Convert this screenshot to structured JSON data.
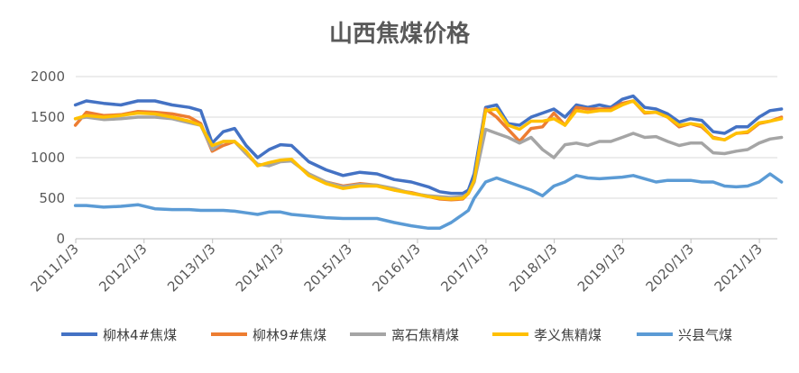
{
  "chart_data": {
    "type": "line",
    "title": "山西焦煤价格",
    "xlabel": "",
    "ylabel": "",
    "ylim": [
      0,
      2000
    ],
    "yticks": [
      "0",
      "500",
      "1000",
      "1500",
      "2000"
    ],
    "xticks": [
      "2011/1/3",
      "2012/1/3",
      "2013/1/3",
      "2014/1/3",
      "2015/1/3",
      "2016/1/3",
      "2017/1/3",
      "2018/1/3",
      "2019/1/3",
      "2020/1/3",
      "2021/1/3"
    ],
    "grid": true,
    "legend_position": "bottom",
    "x": [
      "2011-01",
      "2011-03",
      "2011-06",
      "2011-09",
      "2011-12",
      "2012-03",
      "2012-06",
      "2012-09",
      "2012-11",
      "2013-01",
      "2013-03",
      "2013-05",
      "2013-07",
      "2013-09",
      "2013-11",
      "2014-01",
      "2014-03",
      "2014-06",
      "2014-09",
      "2014-12",
      "2015-03",
      "2015-06",
      "2015-09",
      "2015-12",
      "2016-03",
      "2016-05",
      "2016-07",
      "2016-09",
      "2016-10",
      "2016-11",
      "2017-01",
      "2017-03",
      "2017-05",
      "2017-07",
      "2017-09",
      "2017-11",
      "2018-01",
      "2018-03",
      "2018-05",
      "2018-07",
      "2018-09",
      "2018-11",
      "2019-01",
      "2019-03",
      "2019-05",
      "2019-07",
      "2019-09",
      "2019-11",
      "2020-01",
      "2020-03",
      "2020-05",
      "2020-07",
      "2020-09",
      "2020-11",
      "2021-01",
      "2021-03",
      "2021-05"
    ],
    "series": [
      {
        "name": "柳林4#焦煤",
        "color": "#4472C4",
        "values": [
          1650,
          1700,
          1670,
          1650,
          1700,
          1700,
          1650,
          1620,
          1580,
          1180,
          1320,
          1360,
          1150,
          1000,
          1100,
          1160,
          1150,
          950,
          850,
          780,
          820,
          800,
          730,
          700,
          640,
          580,
          560,
          560,
          600,
          800,
          1620,
          1650,
          1420,
          1400,
          1500,
          1550,
          1600,
          1500,
          1650,
          1620,
          1650,
          1620,
          1720,
          1760,
          1620,
          1600,
          1540,
          1440,
          1480,
          1460,
          1320,
          1300,
          1380,
          1380,
          1500,
          1580,
          1600
        ]
      },
      {
        "name": "柳林9#焦煤",
        "color": "#ED7D31",
        "values": [
          1400,
          1560,
          1520,
          1530,
          1570,
          1560,
          1540,
          1500,
          1420,
          1080,
          1150,
          1200,
          1050,
          910,
          920,
          960,
          960,
          800,
          700,
          650,
          680,
          660,
          600,
          570,
          520,
          490,
          480,
          490,
          560,
          700,
          1600,
          1500,
          1350,
          1200,
          1360,
          1380,
          1550,
          1400,
          1620,
          1600,
          1600,
          1600,
          1670,
          1700,
          1550,
          1560,
          1500,
          1380,
          1420,
          1380,
          1250,
          1220,
          1300,
          1310,
          1420,
          1450,
          1500
        ]
      },
      {
        "name": "离石焦精煤",
        "color": "#A5A5A5",
        "values": [
          1480,
          1500,
          1470,
          1480,
          1500,
          1500,
          1480,
          1430,
          1400,
          1100,
          1200,
          1200,
          1050,
          920,
          900,
          950,
          960,
          800,
          700,
          640,
          670,
          660,
          620,
          560,
          530,
          520,
          510,
          520,
          560,
          700,
          1350,
          1300,
          1250,
          1180,
          1250,
          1100,
          1000,
          1160,
          1180,
          1150,
          1200,
          1200,
          1250,
          1300,
          1250,
          1260,
          1200,
          1150,
          1180,
          1180,
          1060,
          1050,
          1080,
          1100,
          1180,
          1230,
          1250
        ]
      },
      {
        "name": "孝义焦精煤",
        "color": "#FFC000",
        "values": [
          1480,
          1520,
          1500,
          1520,
          1550,
          1540,
          1500,
          1450,
          1400,
          1150,
          1200,
          1200,
          1080,
          900,
          940,
          970,
          980,
          780,
          680,
          620,
          650,
          650,
          600,
          560,
          520,
          500,
          490,
          500,
          560,
          720,
          1580,
          1600,
          1400,
          1350,
          1450,
          1450,
          1480,
          1400,
          1580,
          1560,
          1580,
          1580,
          1650,
          1700,
          1560,
          1560,
          1500,
          1400,
          1420,
          1400,
          1240,
          1220,
          1300,
          1320,
          1430,
          1450,
          1480
        ]
      },
      {
        "name": "兴县气煤",
        "color": "#5B9BD5",
        "values": [
          410,
          410,
          390,
          400,
          420,
          370,
          360,
          360,
          350,
          350,
          350,
          340,
          320,
          300,
          330,
          330,
          300,
          280,
          260,
          250,
          250,
          250,
          200,
          160,
          130,
          130,
          200,
          300,
          350,
          500,
          700,
          750,
          700,
          650,
          600,
          530,
          650,
          700,
          780,
          750,
          740,
          750,
          760,
          780,
          740,
          700,
          720,
          720,
          720,
          700,
          700,
          650,
          640,
          650,
          700,
          800,
          700
        ]
      }
    ]
  }
}
